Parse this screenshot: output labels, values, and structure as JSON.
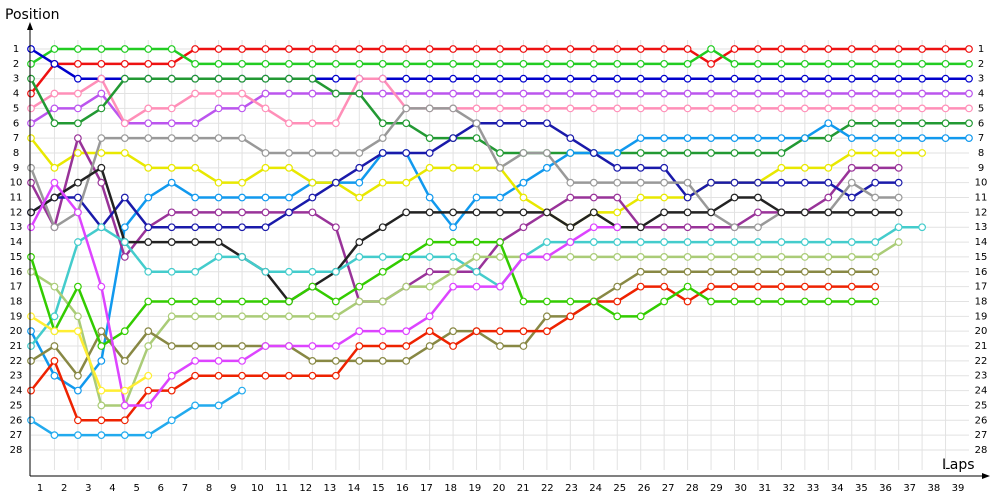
{
  "chart_data": {
    "type": "line",
    "y_axis_label": "Position",
    "x_axis_label": "Laps",
    "x": [
      0,
      1,
      2,
      3,
      4,
      5,
      6,
      7,
      8,
      9,
      10,
      11,
      12,
      13,
      14,
      15,
      16,
      17,
      18,
      19,
      20,
      21,
      22,
      23,
      24,
      25,
      26,
      27,
      28,
      29,
      30,
      31,
      32,
      33,
      34,
      35,
      36,
      37,
      38,
      39,
      40
    ],
    "xlim": [
      0,
      40
    ],
    "ylim": [
      28,
      1
    ],
    "xticks": [
      1,
      2,
      3,
      4,
      5,
      6,
      7,
      8,
      9,
      10,
      11,
      12,
      13,
      14,
      15,
      16,
      17,
      18,
      19,
      20,
      21,
      22,
      23,
      24,
      25,
      26,
      27,
      28,
      29,
      30,
      31,
      32,
      33,
      34,
      35,
      36,
      37,
      38,
      39
    ],
    "yticks": [
      1,
      2,
      3,
      4,
      5,
      6,
      7,
      8,
      9,
      10,
      11,
      12,
      13,
      14,
      15,
      16,
      17,
      18,
      19,
      20,
      21,
      22,
      23,
      24,
      25,
      26,
      27,
      28
    ],
    "grid": true,
    "series": [
      {
        "color": "#ee1111",
        "values": [
          4,
          2,
          2,
          2,
          2,
          2,
          2,
          1,
          1,
          1,
          1,
          1,
          1,
          1,
          1,
          1,
          1,
          1,
          1,
          1,
          1,
          1,
          1,
          1,
          1,
          1,
          1,
          1,
          1,
          2,
          1,
          1,
          1,
          1,
          1,
          1,
          1,
          1,
          1,
          1,
          1
        ]
      },
      {
        "color": "#22cc22",
        "values": [
          2,
          1,
          1,
          1,
          1,
          1,
          1,
          2,
          2,
          2,
          2,
          2,
          2,
          2,
          2,
          2,
          2,
          2,
          2,
          2,
          2,
          2,
          2,
          2,
          2,
          2,
          2,
          2,
          2,
          1,
          2,
          2,
          2,
          2,
          2,
          2,
          2,
          2,
          2,
          2,
          2
        ]
      },
      {
        "color": "#0000cc",
        "values": [
          1,
          2,
          3,
          3,
          3,
          3,
          3,
          3,
          3,
          3,
          3,
          3,
          3,
          3,
          3,
          3,
          3,
          3,
          3,
          3,
          3,
          3,
          3,
          3,
          3,
          3,
          3,
          3,
          3,
          3,
          3,
          3,
          3,
          3,
          3,
          3,
          3,
          3,
          3,
          3,
          3
        ]
      },
      {
        "color": "#bb55ee",
        "values": [
          6,
          5,
          5,
          4,
          6,
          6,
          6,
          6,
          5,
          5,
          4,
          4,
          4,
          4,
          4,
          4,
          4,
          4,
          4,
          4,
          4,
          4,
          4,
          4,
          4,
          4,
          4,
          4,
          4,
          4,
          4,
          4,
          4,
          4,
          4,
          4,
          4,
          4,
          4,
          4,
          4
        ]
      },
      {
        "color": "#ff8fb8",
        "values": [
          5,
          4,
          4,
          3,
          6,
          5,
          5,
          4,
          4,
          4,
          5,
          6,
          6,
          6,
          3,
          3,
          5,
          5,
          5,
          5,
          5,
          5,
          5,
          5,
          5,
          5,
          5,
          5,
          5,
          5,
          5,
          5,
          5,
          5,
          5,
          5,
          5,
          5,
          5,
          5,
          5
        ]
      },
      {
        "color": "#229933",
        "values": [
          3,
          6,
          6,
          5,
          3,
          3,
          3,
          3,
          3,
          3,
          3,
          3,
          3,
          4,
          4,
          6,
          6,
          7,
          7,
          7,
          8,
          8,
          8,
          8,
          8,
          8,
          8,
          8,
          8,
          8,
          8,
          8,
          8,
          7,
          7,
          6,
          6,
          6,
          6,
          6,
          6
        ]
      },
      {
        "color": "#1199ee",
        "values": [
          20,
          23,
          24,
          22,
          13,
          11,
          10,
          11,
          11,
          11,
          11,
          11,
          10,
          10,
          10,
          8,
          8,
          11,
          13,
          11,
          11,
          10,
          9,
          8,
          8,
          8,
          7,
          7,
          7,
          7,
          7,
          7,
          7,
          7,
          6,
          7,
          7,
          7,
          7,
          7,
          7
        ]
      },
      {
        "color": "#e8e800",
        "values": [
          7,
          9,
          8,
          8,
          8,
          9,
          9,
          9,
          10,
          10,
          9,
          9,
          10,
          10,
          11,
          10,
          10,
          9,
          9,
          9,
          9,
          11,
          12,
          13,
          12,
          12,
          11,
          11,
          11,
          10,
          10,
          10,
          9,
          9,
          9,
          8,
          8,
          8,
          8,
          null,
          null
        ]
      },
      {
        "color": "#993399",
        "values": [
          10,
          13,
          7,
          10,
          15,
          13,
          12,
          12,
          12,
          12,
          12,
          12,
          12,
          13,
          18,
          18,
          17,
          16,
          16,
          16,
          14,
          13,
          12,
          11,
          11,
          11,
          13,
          13,
          13,
          13,
          13,
          12,
          12,
          12,
          11,
          9,
          9,
          9,
          null,
          null,
          null
        ]
      },
      {
        "color": "#1a1aaa",
        "values": [
          12,
          11,
          11,
          13,
          11,
          13,
          13,
          13,
          13,
          13,
          13,
          12,
          11,
          10,
          9,
          8,
          8,
          8,
          7,
          6,
          6,
          6,
          6,
          7,
          8,
          9,
          9,
          9,
          11,
          10,
          10,
          10,
          10,
          10,
          10,
          11,
          10,
          10,
          null,
          null,
          null
        ]
      },
      {
        "color": "#999999",
        "values": [
          9,
          13,
          12,
          7,
          7,
          7,
          7,
          7,
          7,
          7,
          8,
          8,
          8,
          8,
          8,
          7,
          5,
          5,
          5,
          6,
          9,
          8,
          8,
          10,
          10,
          10,
          10,
          10,
          10,
          12,
          13,
          13,
          12,
          12,
          12,
          10,
          11,
          11,
          null,
          null,
          null
        ]
      },
      {
        "color": "#222222",
        "values": [
          12,
          11,
          10,
          9,
          14,
          14,
          14,
          14,
          14,
          15,
          16,
          18,
          17,
          16,
          14,
          13,
          12,
          12,
          12,
          12,
          12,
          12,
          12,
          13,
          12,
          13,
          13,
          12,
          12,
          12,
          11,
          11,
          12,
          12,
          12,
          12,
          12,
          12,
          null,
          null,
          null
        ]
      },
      {
        "color": "#44cccc",
        "values": [
          21,
          19,
          14,
          13,
          14,
          16,
          16,
          16,
          15,
          15,
          16,
          16,
          16,
          16,
          15,
          15,
          15,
          15,
          15,
          16,
          17,
          15,
          14,
          14,
          14,
          14,
          14,
          14,
          14,
          14,
          14,
          14,
          14,
          14,
          14,
          14,
          14,
          13,
          13,
          null,
          null
        ]
      },
      {
        "color": "#aacc77",
        "values": [
          16,
          17,
          19,
          25,
          25,
          21,
          19,
          19,
          19,
          19,
          19,
          19,
          19,
          19,
          18,
          18,
          17,
          17,
          16,
          15,
          15,
          15,
          15,
          15,
          15,
          15,
          15,
          15,
          15,
          15,
          15,
          15,
          15,
          15,
          15,
          15,
          15,
          14,
          null,
          null,
          null
        ]
      },
      {
        "color": "#888844",
        "values": [
          22,
          21,
          23,
          20,
          22,
          20,
          21,
          21,
          21,
          21,
          21,
          21,
          22,
          22,
          22,
          22,
          22,
          21,
          20,
          20,
          21,
          21,
          19,
          19,
          18,
          17,
          16,
          16,
          16,
          16,
          16,
          16,
          16,
          16,
          16,
          16,
          16,
          null,
          null,
          null,
          null
        ]
      },
      {
        "color": "#ee2200",
        "values": [
          24,
          22,
          26,
          26,
          26,
          24,
          24,
          23,
          23,
          23,
          23,
          23,
          23,
          23,
          21,
          21,
          21,
          20,
          21,
          20,
          20,
          20,
          20,
          19,
          18,
          18,
          17,
          17,
          18,
          17,
          17,
          17,
          17,
          17,
          17,
          17,
          17,
          null,
          null,
          null,
          null
        ]
      },
      {
        "color": "#33cc00",
        "values": [
          15,
          20,
          17,
          21,
          20,
          18,
          18,
          18,
          18,
          18,
          18,
          18,
          17,
          18,
          17,
          16,
          15,
          14,
          14,
          14,
          14,
          18,
          18,
          18,
          18,
          19,
          19,
          18,
          17,
          18,
          18,
          18,
          18,
          18,
          18,
          18,
          18,
          null,
          null,
          null,
          null
        ]
      },
      {
        "color": "#22aaee",
        "values": [
          26,
          27,
          27,
          27,
          27,
          27,
          26,
          25,
          25,
          24,
          null,
          null,
          null,
          null,
          null,
          null,
          null,
          null,
          null,
          null,
          null,
          null,
          null,
          null,
          null,
          null,
          null,
          null,
          null,
          null,
          null,
          null,
          null,
          null,
          null,
          null,
          null,
          null,
          null,
          null,
          null
        ]
      },
      {
        "color": "#dd44ff",
        "values": [
          13,
          10,
          12,
          17,
          25,
          25,
          23,
          22,
          22,
          22,
          21,
          21,
          21,
          21,
          20,
          20,
          20,
          19,
          17,
          17,
          17,
          15,
          15,
          14,
          13,
          13,
          null,
          null,
          null,
          null,
          null,
          null,
          null,
          null,
          null,
          null,
          null,
          null,
          null,
          null,
          null
        ]
      },
      {
        "color": "#ffee33",
        "values": [
          19,
          20,
          20,
          24,
          24,
          23,
          null,
          null,
          null,
          null,
          null,
          null,
          null,
          null,
          null,
          null,
          null,
          null,
          null,
          null,
          null,
          null,
          null,
          null,
          null,
          null,
          null,
          null,
          null,
          null,
          null,
          null,
          null,
          null,
          null,
          null,
          null,
          null,
          null,
          null,
          null
        ]
      }
    ]
  }
}
